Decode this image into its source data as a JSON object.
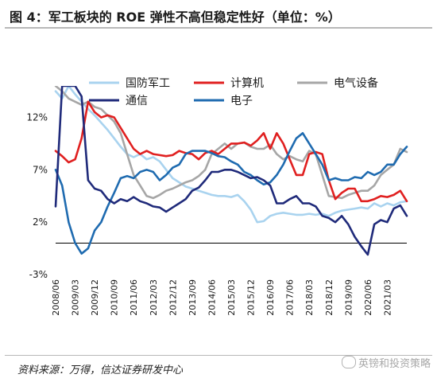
{
  "title": "图 4：军工板块的 ROE 弹性不高但稳定性好（单位：%）",
  "source": "资料来源：万得，信达证券研发中心",
  "watermark": "英镑和投资策略",
  "chart_data": {
    "type": "line",
    "title": "图 4：军工板块的 ROE 弹性不高但稳定性好（单位：%）",
    "unit": "%",
    "xlabel": "",
    "ylabel": "",
    "ylim": [
      -3,
      15
    ],
    "yticks": [
      -3,
      2,
      7,
      12
    ],
    "ytick_labels": [
      "-3%",
      "2%",
      "7%",
      "12%"
    ],
    "grid": false,
    "legend_position": "top",
    "x_start": "2008/06",
    "x_step": "quarter",
    "xtick_labels": [
      "2008/06",
      "2009/03",
      "2009/12",
      "2010/09",
      "2011/06",
      "2012/03",
      "2012/12",
      "2013/09",
      "2014/06",
      "2015/03",
      "2015/12",
      "2016/09",
      "2017/06",
      "2018/03",
      "2018/12",
      "2019/09",
      "2020/06",
      "2021/03"
    ],
    "series": [
      {
        "name": "国防军工",
        "color": "#a9d3ef",
        "values": [
          14.5,
          13.8,
          15.0,
          14.2,
          13.5,
          12.8,
          12.2,
          11.5,
          10.8,
          10.0,
          9.2,
          8.5,
          8.2,
          8.5,
          8.0,
          8.2,
          7.8,
          7.0,
          6.2,
          5.8,
          5.4,
          5.2,
          5.0,
          4.8,
          4.6,
          4.5,
          4.5,
          4.4,
          4.6,
          4.0,
          3.2,
          2.0,
          2.1,
          2.6,
          2.8,
          2.9,
          2.8,
          2.7,
          2.7,
          2.8,
          2.7,
          2.8,
          2.6,
          2.9,
          3.1,
          3.2,
          3.3,
          3.4,
          3.3,
          3.8,
          3.5,
          3.8,
          3.6,
          3.9,
          4.0
        ]
      },
      {
        "name": "计算机",
        "color": "#e02020",
        "values": [
          8.8,
          8.3,
          7.7,
          8.0,
          10.0,
          13.5,
          12.5,
          12.0,
          12.2,
          12.0,
          11.0,
          10.0,
          9.0,
          8.5,
          8.8,
          8.5,
          8.4,
          8.3,
          8.4,
          8.8,
          8.6,
          8.5,
          8.0,
          8.6,
          8.8,
          8.5,
          9.0,
          9.5,
          9.5,
          9.6,
          9.3,
          9.8,
          10.5,
          9.0,
          10.5,
          9.5,
          8.0,
          6.5,
          6.5,
          8.5,
          8.7,
          8.5,
          6.0,
          4.2,
          4.8,
          5.2,
          5.2,
          4.0,
          4.0,
          4.2,
          4.5,
          4.4,
          4.6,
          5.0,
          4.0
        ]
      },
      {
        "name": "电气设备",
        "color": "#a6a6a6",
        "values": [
          15.0,
          14.5,
          13.8,
          13.5,
          13.2,
          13.5,
          13.0,
          12.8,
          12.2,
          11.6,
          10.5,
          8.5,
          6.5,
          5.5,
          4.5,
          4.3,
          4.6,
          5.0,
          5.2,
          5.5,
          5.8,
          6.0,
          6.4,
          7.0,
          8.5,
          9.0,
          9.5,
          9.0,
          9.5,
          9.6,
          9.2,
          9.0,
          9.0,
          9.4,
          8.5,
          8.0,
          8.3,
          8.0,
          7.8,
          8.8,
          8.5,
          6.5,
          4.5,
          4.4,
          4.3,
          4.6,
          4.8,
          5.0,
          5.0,
          5.5,
          6.5,
          7.0,
          7.5,
          9.0,
          8.7
        ]
      },
      {
        "name": "通信",
        "color": "#1f2a7a",
        "values": [
          3.5,
          15.0,
          15.0,
          15.0,
          14.0,
          6.0,
          5.2,
          5.0,
          4.2,
          3.8,
          4.2,
          4.0,
          4.4,
          4.0,
          3.8,
          3.5,
          3.4,
          3.0,
          3.4,
          3.8,
          4.2,
          5.0,
          5.3,
          6.0,
          6.8,
          6.8,
          7.0,
          7.0,
          6.8,
          6.5,
          6.2,
          6.3,
          6.0,
          5.5,
          3.8,
          3.8,
          4.2,
          4.5,
          3.8,
          3.8,
          3.5,
          2.6,
          2.4,
          2.0,
          2.6,
          1.8,
          0.6,
          -0.3,
          -1.1,
          1.8,
          2.2,
          2.0,
          3.3,
          3.6,
          2.6
        ]
      },
      {
        "name": "电子",
        "color": "#1f6bb0",
        "values": [
          7.0,
          5.5,
          2.0,
          0.0,
          -1.0,
          -0.5,
          1.2,
          2.0,
          3.5,
          4.8,
          6.2,
          6.4,
          6.2,
          6.8,
          7.0,
          6.8,
          6.0,
          6.5,
          7.2,
          7.5,
          8.5,
          8.8,
          8.8,
          8.8,
          8.6,
          8.3,
          8.2,
          7.8,
          7.5,
          6.8,
          6.5,
          6.0,
          5.6,
          5.8,
          6.5,
          7.5,
          8.8,
          10.0,
          10.5,
          9.5,
          8.5,
          7.5,
          6.0,
          6.2,
          6.0,
          6.0,
          6.3,
          6.2,
          6.8,
          6.5,
          6.8,
          7.5,
          7.5,
          8.5,
          9.2
        ]
      }
    ]
  }
}
